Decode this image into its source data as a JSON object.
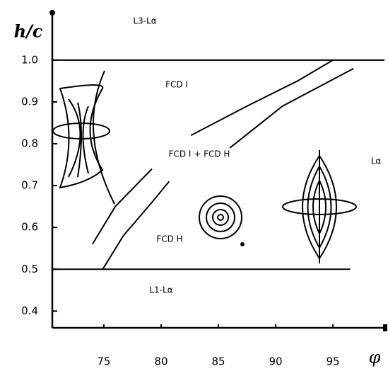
{
  "chart_data": {
    "type": "line",
    "y_label": "h/c",
    "x_label": "φ",
    "annotations": [
      "L3-Lα",
      "FCD I",
      "FCD I + FCD H",
      "FCD H",
      "Lα",
      "L1-Lα"
    ],
    "xlim": [
      70.5,
      99.5
    ],
    "xticks": [
      75,
      80,
      85,
      90,
      95
    ],
    "ylim": [
      0.36,
      1.12
    ],
    "yticks": [
      {
        "value": 1,
        "label": "1.0"
      },
      0.9,
      0.8,
      0.7,
      0.6,
      0.5,
      0.4
    ],
    "color": "#000000",
    "series": [
      {
        "x": [
          74,
          76,
          79.2
        ],
        "values": [
          0.56,
          0.65,
          0.74
        ]
      },
      {
        "x": [
          82.6,
          87.5,
          91.9,
          95
        ],
        "values": [
          0.82,
          0.89,
          0.95,
          1.0
        ]
      },
      {
        "x": [
          74.9,
          76.7,
          79.2,
          80.7
        ],
        "values": [
          0.5,
          0.58,
          0.66,
          0.71
        ]
      },
      {
        "x": [
          86,
          90.6,
          96.8
        ],
        "values": [
          0.79,
          0.89,
          0.98
        ]
      },
      {
        "x": [
          70.5,
          99.5
        ],
        "values": [
          1.0,
          1.0
        ]
      },
      {
        "x": [
          70.5,
          96.5
        ],
        "values": [
          0.5,
          0.5
        ]
      }
    ]
  }
}
